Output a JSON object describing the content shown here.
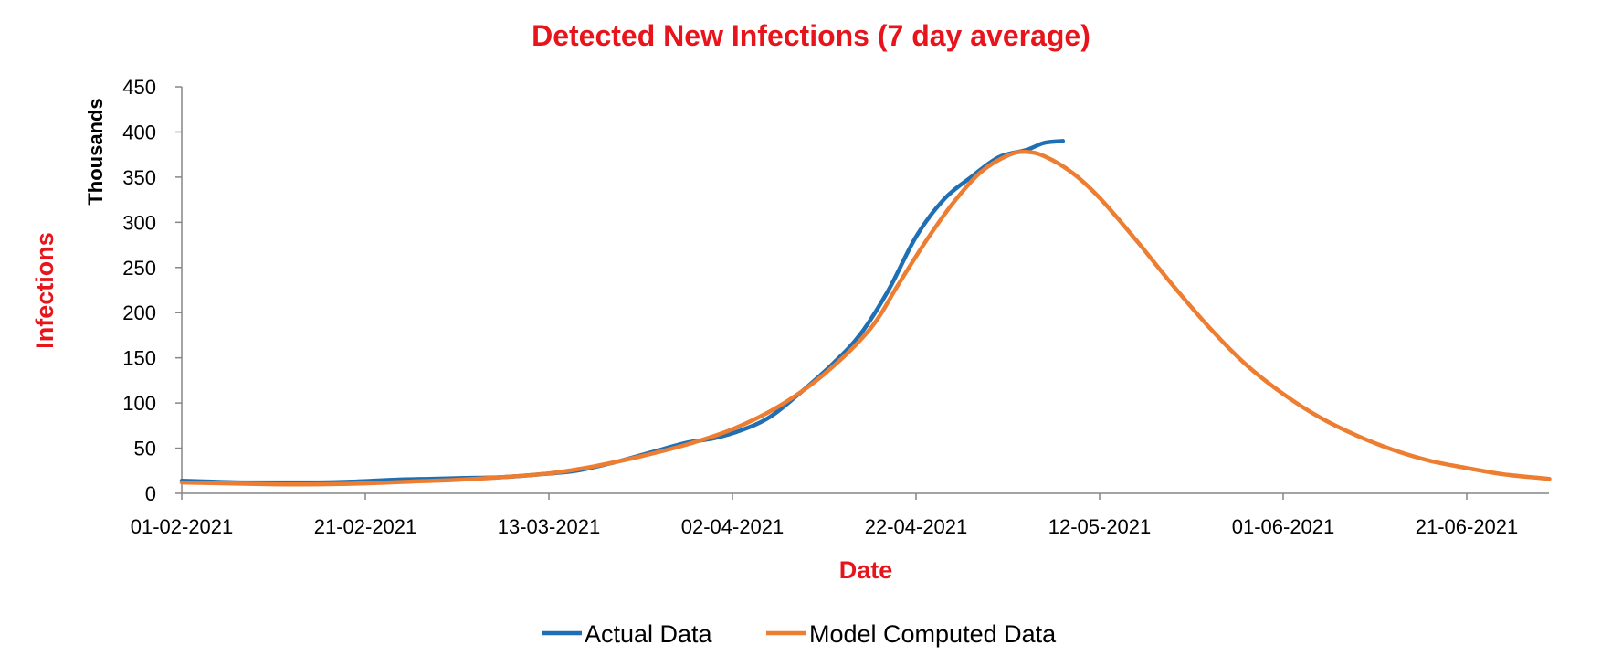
{
  "chart_data": {
    "type": "line",
    "title": "Detected New Infections (7 day average)",
    "ylabel": "Infections",
    "yunit_label": "Thousands",
    "xlabel": "Date",
    "ylim": [
      0,
      450
    ],
    "yticks": [
      0,
      50,
      100,
      150,
      200,
      250,
      300,
      350,
      400,
      450
    ],
    "xlim": [
      "01-02-2021",
      "30-06-2021"
    ],
    "xticks": [
      "01-02-2021",
      "21-02-2021",
      "13-03-2021",
      "02-04-2021",
      "22-04-2021",
      "12-05-2021",
      "01-06-2021",
      "21-06-2021"
    ],
    "grid": false,
    "legend_position": "bottom",
    "series": [
      {
        "name": "Actual Data",
        "color": "#1f6fb4",
        "points": [
          [
            "01-02-2021",
            14
          ],
          [
            "04-02-2021",
            13
          ],
          [
            "08-02-2021",
            12
          ],
          [
            "12-02-2021",
            12
          ],
          [
            "16-02-2021",
            12
          ],
          [
            "20-02-2021",
            13
          ],
          [
            "24-02-2021",
            15
          ],
          [
            "28-02-2021",
            16
          ],
          [
            "04-03-2021",
            17
          ],
          [
            "08-03-2021",
            18
          ],
          [
            "12-03-2021",
            21
          ],
          [
            "16-03-2021",
            25
          ],
          [
            "20-03-2021",
            34
          ],
          [
            "24-03-2021",
            45
          ],
          [
            "28-03-2021",
            56
          ],
          [
            "31-03-2021",
            61
          ],
          [
            "03-04-2021",
            70
          ],
          [
            "06-04-2021",
            84
          ],
          [
            "09-04-2021",
            108
          ],
          [
            "13-04-2021",
            144
          ],
          [
            "16-04-2021",
            177
          ],
          [
            "19-04-2021",
            225
          ],
          [
            "22-04-2021",
            284
          ],
          [
            "25-04-2021",
            325
          ],
          [
            "28-04-2021",
            350
          ],
          [
            "01-05-2021",
            372
          ],
          [
            "04-05-2021",
            380
          ],
          [
            "06-05-2021",
            388
          ],
          [
            "08-05-2021",
            390
          ]
        ]
      },
      {
        "name": "Model Computed Data",
        "color": "#ed7d31",
        "points": [
          [
            "01-02-2021",
            12
          ],
          [
            "06-02-2021",
            11
          ],
          [
            "11-02-2021",
            10
          ],
          [
            "16-02-2021",
            10
          ],
          [
            "21-02-2021",
            11
          ],
          [
            "26-02-2021",
            13
          ],
          [
            "03-03-2021",
            15
          ],
          [
            "08-03-2021",
            18
          ],
          [
            "13-03-2021",
            22
          ],
          [
            "18-03-2021",
            30
          ],
          [
            "23-03-2021",
            41
          ],
          [
            "28-03-2021",
            54
          ],
          [
            "02-04-2021",
            71
          ],
          [
            "07-04-2021",
            96
          ],
          [
            "12-04-2021",
            132
          ],
          [
            "17-04-2021",
            182
          ],
          [
            "20-04-2021",
            230
          ],
          [
            "23-04-2021",
            278
          ],
          [
            "26-04-2021",
            321
          ],
          [
            "29-04-2021",
            355
          ],
          [
            "02-05-2021",
            374
          ],
          [
            "04-05-2021",
            378
          ],
          [
            "06-05-2021",
            373
          ],
          [
            "09-05-2021",
            355
          ],
          [
            "12-05-2021",
            327
          ],
          [
            "16-05-2021",
            280
          ],
          [
            "20-05-2021",
            230
          ],
          [
            "24-05-2021",
            183
          ],
          [
            "28-05-2021",
            142
          ],
          [
            "01-06-2021",
            110
          ],
          [
            "05-06-2021",
            84
          ],
          [
            "09-06-2021",
            64
          ],
          [
            "13-06-2021",
            48
          ],
          [
            "17-06-2021",
            36
          ],
          [
            "21-06-2021",
            28
          ],
          [
            "25-06-2021",
            21
          ],
          [
            "29-06-2021",
            17
          ],
          [
            "30-06-2021",
            16
          ]
        ]
      }
    ]
  }
}
